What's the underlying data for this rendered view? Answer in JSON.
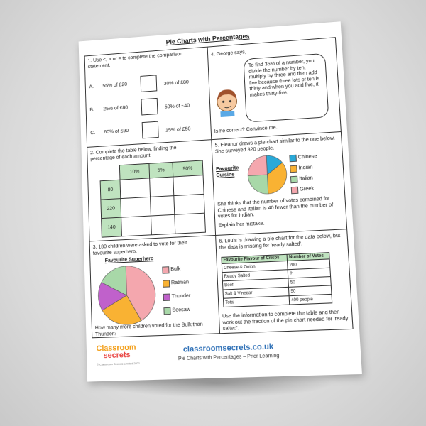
{
  "header": {
    "title": "Pie Charts with Percentages"
  },
  "q1": {
    "prompt": "1. Use <, > or = to complete the comparison statement.",
    "rows": [
      {
        "letter": "A.",
        "left": "55% of £20",
        "right": "30% of £80"
      },
      {
        "letter": "B.",
        "left": "25% of £80",
        "right": "50% of £40"
      },
      {
        "letter": "C.",
        "left": "60% of £90",
        "right": "15% of £50"
      }
    ]
  },
  "q2": {
    "prompt": "2. Complete the table below, finding the percentage of each amount.",
    "columns": [
      "10%",
      "5%",
      "90%"
    ],
    "rows": [
      "80",
      "220",
      "140"
    ]
  },
  "q3": {
    "prompt": "3. 180 children were asked to vote for their favourite superhero.",
    "chart_title": "Favourite Superhero",
    "legend": [
      "Bulk",
      "Ratman",
      "Thunder",
      "Seesaw"
    ],
    "question": "How many more children voted for the Bulk than Thunder?"
  },
  "q4": {
    "prompt": "4. George says,",
    "speech": "To find 35% of a number, you divide the number by ten, multiply by three and then add five because three lots of ten is thirty and when you add five, it makes thirty-five.",
    "question": "Is he correct?  Convince me."
  },
  "q5": {
    "prompt": "5. Eleanor draws a pie chart similar to the one below. She surveyed 320 people.",
    "chart_title": "Favourite Cuisine",
    "legend": [
      "Chinese",
      "Indian",
      "Italian",
      "Greek"
    ],
    "statement": "She thinks that the number of votes combined for Chinese and Italian is 40 fewer than the number of votes for Indian.",
    "question": "Explain her mistake."
  },
  "q6": {
    "prompt": "6. Louis is drawing a pie chart for the data below, but the data is missing for 'ready salted'.",
    "table": {
      "header": [
        "Favourite Flavour of Crisps",
        "Number of Votes"
      ],
      "rows": [
        [
          "Cheese & Onion",
          "200"
        ],
        [
          "Ready Salted",
          "?"
        ],
        [
          "Beef",
          "50"
        ],
        [
          "Salt & Vinegar",
          "50"
        ],
        [
          "Total",
          "400 people"
        ]
      ]
    },
    "question": "Use the information to complete the table and then work out the fraction of the pie chart needed for 'ready salted'."
  },
  "footer": {
    "logo_top": "Classroom",
    "logo_bottom": "secrets",
    "website": "classroomsecrets.co.uk",
    "subtitle": "Pie Charts with Percentages – Prior Learning",
    "copyright": "© Classroom Secrets Limited 2021"
  }
}
